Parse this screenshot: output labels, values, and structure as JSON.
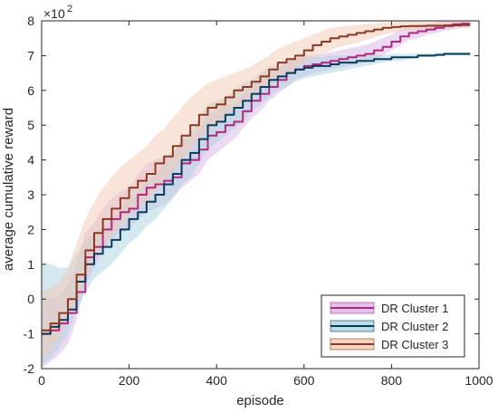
{
  "chart_data": {
    "type": "line",
    "xlabel": "episode",
    "ylabel": "average cumulative reward",
    "y_multiplier_label": "×10",
    "y_multiplier_exponent": "2",
    "xlim": [
      0,
      1000
    ],
    "ylim": [
      -2,
      8
    ],
    "x_ticks": [
      0,
      200,
      400,
      600,
      800,
      1000
    ],
    "y_ticks": [
      -2,
      -1,
      0,
      1,
      2,
      3,
      4,
      5,
      6,
      7,
      8
    ],
    "grid": false,
    "legend_position": "bottom-right",
    "series": [
      {
        "name": "DR Cluster 1",
        "color": "#b5267f",
        "band_color": "#d9b3e6",
        "x": [
          0,
          20,
          40,
          60,
          80,
          100,
          120,
          140,
          160,
          180,
          200,
          220,
          240,
          260,
          280,
          300,
          320,
          340,
          360,
          380,
          400,
          420,
          440,
          460,
          480,
          500,
          520,
          540,
          560,
          580,
          600,
          620,
          640,
          660,
          680,
          700,
          720,
          740,
          760,
          780,
          800,
          820,
          840,
          860,
          880,
          900,
          920,
          940,
          960,
          980
        ],
        "mean": [
          -1.0,
          -0.9,
          -0.7,
          -0.4,
          0.2,
          1.2,
          1.5,
          2.0,
          2.3,
          2.5,
          2.6,
          3.0,
          3.2,
          3.3,
          3.4,
          3.5,
          3.9,
          4.0,
          4.3,
          4.7,
          4.8,
          5.0,
          5.1,
          5.4,
          5.7,
          5.9,
          6.1,
          6.3,
          6.5,
          6.6,
          6.7,
          6.75,
          6.8,
          6.85,
          6.9,
          6.95,
          7.0,
          7.05,
          7.15,
          7.25,
          7.4,
          7.55,
          7.65,
          7.7,
          7.75,
          7.8,
          7.85,
          7.9,
          7.92,
          7.92
        ],
        "lower": [
          -2.0,
          -1.8,
          -1.6,
          -1.3,
          -0.6,
          0.4,
          0.9,
          1.4,
          1.7,
          1.9,
          2.0,
          2.3,
          2.5,
          2.6,
          2.7,
          2.9,
          3.2,
          3.4,
          3.6,
          4.0,
          4.2,
          4.4,
          4.6,
          4.9,
          5.2,
          5.4,
          5.7,
          5.9,
          6.1,
          6.3,
          6.4,
          6.5,
          6.55,
          6.6,
          6.65,
          6.7,
          6.75,
          6.8,
          6.9,
          7.0,
          7.15,
          7.3,
          7.45,
          7.5,
          7.6,
          7.65,
          7.7,
          7.75,
          7.8,
          7.8
        ],
        "upper": [
          0.0,
          0.0,
          0.1,
          0.4,
          1.0,
          1.9,
          2.2,
          2.6,
          2.9,
          3.1,
          3.2,
          3.6,
          3.9,
          4.0,
          4.1,
          4.2,
          4.6,
          4.6,
          4.9,
          5.3,
          5.4,
          5.6,
          5.6,
          5.9,
          6.2,
          6.3,
          6.5,
          6.6,
          6.8,
          6.9,
          7.0,
          7.0,
          7.05,
          7.1,
          7.15,
          7.2,
          7.25,
          7.3,
          7.4,
          7.5,
          7.6,
          7.75,
          7.85,
          7.9,
          7.9,
          7.95,
          8.0,
          8.0,
          8.0,
          8.0
        ]
      },
      {
        "name": "DR Cluster 2",
        "color": "#0b3b5c",
        "band_color": "#a9d3e0",
        "x": [
          0,
          20,
          40,
          60,
          80,
          100,
          120,
          140,
          160,
          180,
          200,
          220,
          240,
          260,
          280,
          300,
          320,
          340,
          360,
          380,
          400,
          420,
          440,
          460,
          480,
          500,
          520,
          540,
          560,
          580,
          600,
          620,
          640,
          660,
          680,
          700,
          720,
          740,
          760,
          780,
          800,
          820,
          840,
          860,
          880,
          900,
          920,
          940,
          960,
          980
        ],
        "mean": [
          -1.0,
          -0.8,
          -0.6,
          -0.3,
          0.5,
          1.0,
          1.3,
          1.5,
          1.7,
          2.0,
          2.3,
          2.5,
          2.8,
          3.0,
          3.3,
          3.6,
          4.0,
          4.2,
          4.6,
          5.0,
          5.1,
          5.3,
          5.5,
          5.7,
          5.9,
          6.1,
          6.3,
          6.4,
          6.5,
          6.6,
          6.65,
          6.7,
          6.7,
          6.75,
          6.8,
          6.8,
          6.85,
          6.85,
          6.9,
          6.9,
          6.95,
          6.95,
          6.95,
          7.0,
          7.0,
          7.02,
          7.05,
          7.05,
          7.05,
          7.05
        ],
        "lower": [
          -1.9,
          -1.7,
          -1.4,
          -1.0,
          -0.3,
          0.2,
          0.6,
          0.8,
          1.0,
          1.3,
          1.6,
          1.8,
          2.1,
          2.3,
          2.6,
          2.9,
          3.3,
          3.5,
          3.9,
          4.3,
          4.5,
          4.7,
          4.9,
          5.1,
          5.4,
          5.6,
          5.8,
          6.0,
          6.1,
          6.25,
          6.35,
          6.4,
          6.45,
          6.5,
          6.55,
          6.6,
          6.65,
          6.7,
          6.75,
          6.8,
          6.85,
          6.85,
          6.9,
          6.95,
          6.95,
          6.97,
          7.0,
          7.0,
          7.0,
          7.0
        ],
        "upper": [
          1.0,
          1.0,
          0.9,
          0.9,
          1.3,
          1.7,
          1.9,
          2.1,
          2.3,
          2.6,
          2.9,
          3.1,
          3.4,
          3.6,
          3.9,
          4.2,
          4.6,
          4.8,
          5.2,
          5.6,
          5.7,
          5.8,
          6.0,
          6.2,
          6.3,
          6.5,
          6.7,
          6.75,
          6.85,
          6.9,
          6.95,
          6.95,
          6.95,
          7.0,
          7.0,
          7.0,
          7.0,
          7.0,
          7.02,
          7.02,
          7.05,
          7.05,
          7.05,
          7.07,
          7.07,
          7.08,
          7.1,
          7.1,
          7.1,
          7.1
        ]
      },
      {
        "name": "DR Cluster 3",
        "color": "#8b3a22",
        "band_color": "#f3c9b3",
        "x": [
          0,
          20,
          40,
          60,
          80,
          100,
          120,
          140,
          160,
          180,
          200,
          220,
          240,
          260,
          280,
          300,
          320,
          340,
          360,
          380,
          400,
          420,
          440,
          460,
          480,
          500,
          520,
          540,
          560,
          580,
          600,
          620,
          640,
          660,
          680,
          700,
          720,
          740,
          760,
          780,
          800,
          820,
          840,
          860,
          880,
          900,
          920,
          940,
          960,
          980
        ],
        "mean": [
          -0.9,
          -0.7,
          -0.4,
          0.0,
          0.7,
          1.4,
          1.9,
          2.3,
          2.6,
          2.9,
          3.2,
          3.4,
          3.6,
          3.9,
          4.1,
          4.4,
          4.7,
          5.0,
          5.3,
          5.5,
          5.6,
          5.8,
          6.0,
          6.1,
          6.25,
          6.4,
          6.6,
          6.8,
          6.9,
          7.0,
          7.15,
          7.3,
          7.4,
          7.5,
          7.55,
          7.6,
          7.65,
          7.7,
          7.75,
          7.8,
          7.82,
          7.84,
          7.85,
          7.85,
          7.86,
          7.86,
          7.87,
          7.87,
          7.88,
          7.88
        ],
        "lower": [
          -1.7,
          -1.5,
          -1.1,
          -0.6,
          0.0,
          0.6,
          1.1,
          1.5,
          1.8,
          2.1,
          2.4,
          2.6,
          2.8,
          3.1,
          3.4,
          3.7,
          4.0,
          4.3,
          4.6,
          4.9,
          5.0,
          5.3,
          5.5,
          5.6,
          5.8,
          6.0,
          6.2,
          6.4,
          6.5,
          6.6,
          6.8,
          6.95,
          7.05,
          7.15,
          7.25,
          7.3,
          7.35,
          7.45,
          7.5,
          7.6,
          7.65,
          7.7,
          7.72,
          7.74,
          7.75,
          7.76,
          7.77,
          7.78,
          7.79,
          7.8
        ],
        "upper": [
          0.2,
          0.3,
          0.5,
          0.9,
          1.6,
          2.3,
          2.8,
          3.2,
          3.5,
          3.8,
          4.0,
          4.2,
          4.4,
          4.7,
          4.9,
          5.2,
          5.5,
          5.8,
          6.0,
          6.2,
          6.3,
          6.4,
          6.5,
          6.6,
          6.7,
          6.85,
          7.0,
          7.2,
          7.3,
          7.4,
          7.5,
          7.6,
          7.7,
          7.8,
          7.82,
          7.85,
          7.88,
          7.9,
          7.92,
          7.95,
          7.97,
          7.98,
          7.98,
          7.98,
          7.98,
          7.98,
          7.98,
          7.98,
          7.98,
          7.98
        ]
      }
    ]
  }
}
